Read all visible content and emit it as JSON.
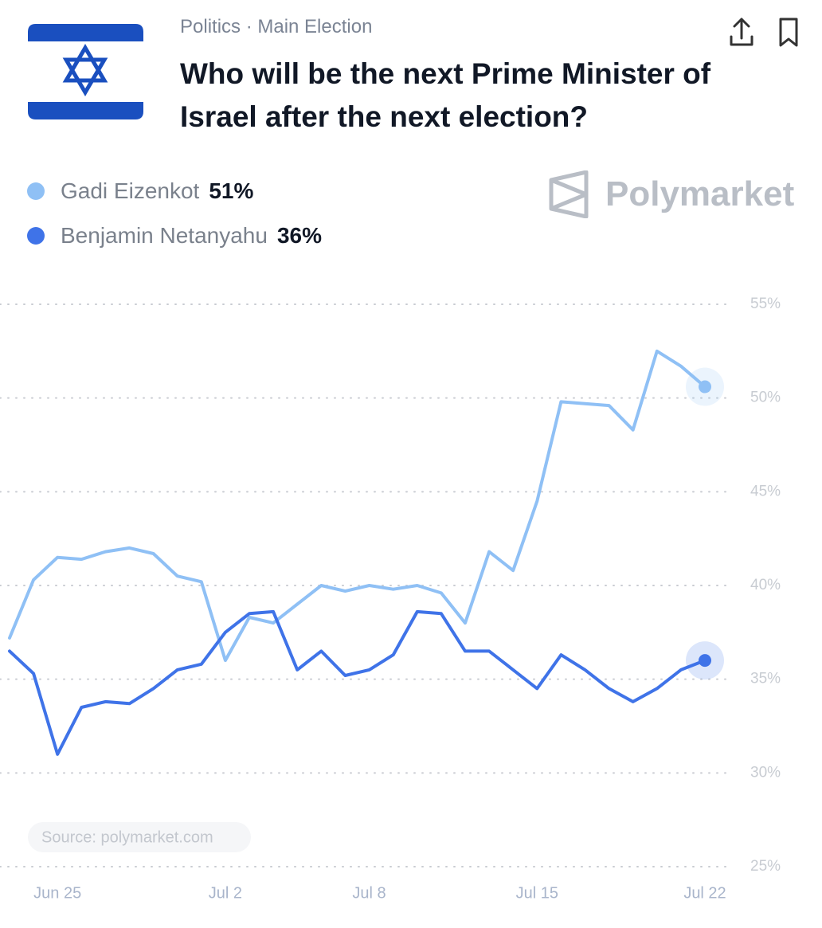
{
  "header": {
    "breadcrumb": "Politics · Main Election",
    "title": "Who will be the next Prime Minister of Israel after the next election?",
    "logo": "Polymarket",
    "source": "Source: polymarket.com"
  },
  "chart_data": {
    "type": "line",
    "x": [
      null,
      null,
      "Jun 25",
      null,
      null,
      null,
      null,
      null,
      null,
      "Jul 2",
      null,
      null,
      null,
      null,
      null,
      "Jul 8",
      null,
      null,
      null,
      null,
      null,
      null,
      "Jul 15",
      null,
      null,
      null,
      null,
      null,
      null,
      "Jul 22"
    ],
    "series": [
      {
        "name": "Gadi Eizenkot",
        "color": "#8fc0f5",
        "value_label": "51%",
        "values": [
          37.2,
          40.3,
          41.5,
          41.4,
          41.8,
          42,
          41.7,
          40.5,
          40.2,
          36,
          38.3,
          38,
          39,
          40,
          39.7,
          40,
          39.8,
          40,
          39.6,
          38,
          41.8,
          40.8,
          44.5,
          49.8,
          49.7,
          49.6,
          48.3,
          52.5,
          51.7,
          50.6
        ]
      },
      {
        "name": "Benjamin Netanyahu",
        "color": "#3f73e8",
        "value_label": "36%",
        "values": [
          36.5,
          35.3,
          31,
          33.5,
          33.8,
          33.7,
          34.5,
          35.5,
          35.8,
          37.5,
          38.5,
          38.6,
          35.5,
          36.5,
          35.2,
          35.5,
          36.3,
          38.6,
          38.5,
          36.5,
          36.5,
          35.5,
          34.5,
          36.3,
          35.5,
          34.5,
          33.8,
          34.5,
          35.5,
          36
        ]
      }
    ],
    "ylim": [
      25,
      55
    ],
    "yticks": [
      {
        "value": 25,
        "label": "25%"
      },
      {
        "value": 30,
        "label": "30%"
      },
      {
        "value": 35,
        "label": "35%"
      },
      {
        "value": 40,
        "label": "40%"
      },
      {
        "value": 45,
        "label": "45%"
      },
      {
        "value": 50,
        "label": "50%"
      },
      {
        "value": 55,
        "label": "55%"
      }
    ],
    "grid": true
  }
}
